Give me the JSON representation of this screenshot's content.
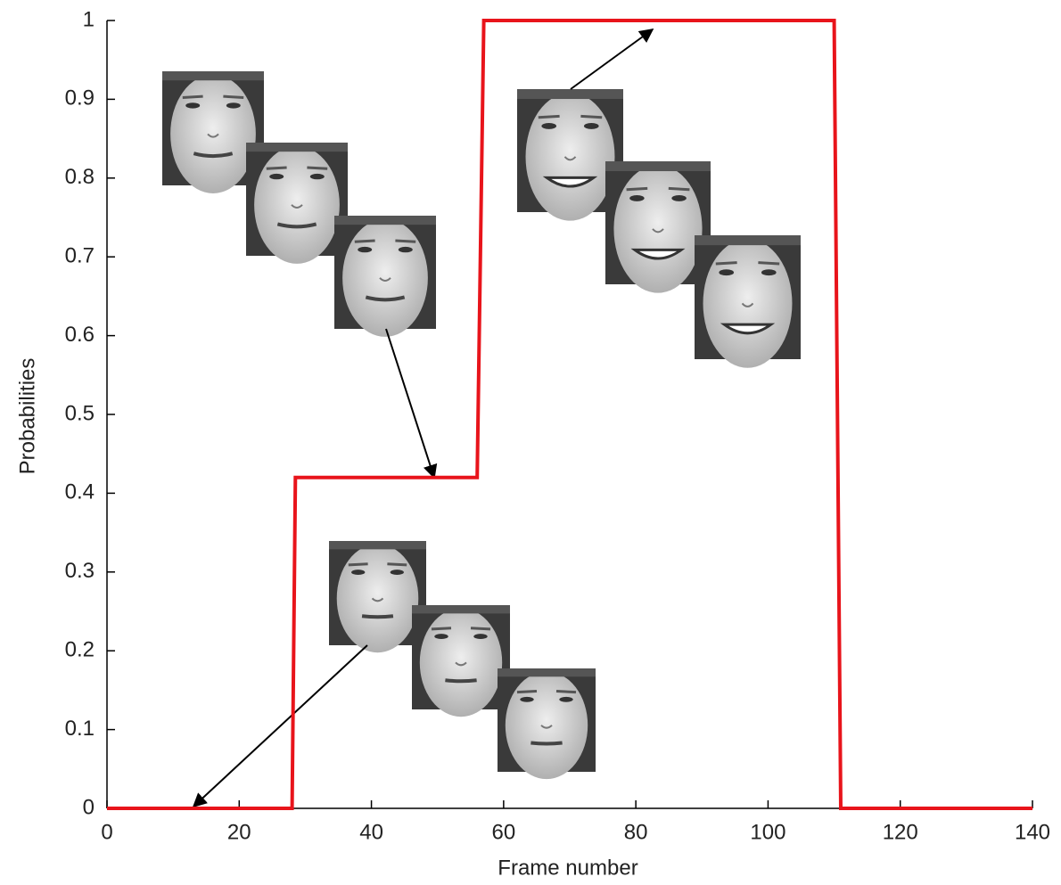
{
  "chart_data": {
    "type": "line",
    "xlabel": "Frame number",
    "ylabel": "Probabilities",
    "x": [
      0,
      28,
      28.5,
      56,
      57,
      110,
      111,
      140
    ],
    "values": [
      0,
      0,
      0.42,
      0.42,
      1,
      1,
      0,
      0
    ],
    "color": "#e8141b",
    "xlim": [
      0,
      140
    ],
    "ylim": [
      0,
      1
    ],
    "xticks": [
      0,
      20,
      40,
      60,
      80,
      100,
      120,
      140
    ],
    "yticks": [
      0,
      0.1,
      0.2,
      0.3,
      0.4,
      0.5,
      0.6,
      0.7,
      0.8,
      0.9,
      1
    ]
  }
}
